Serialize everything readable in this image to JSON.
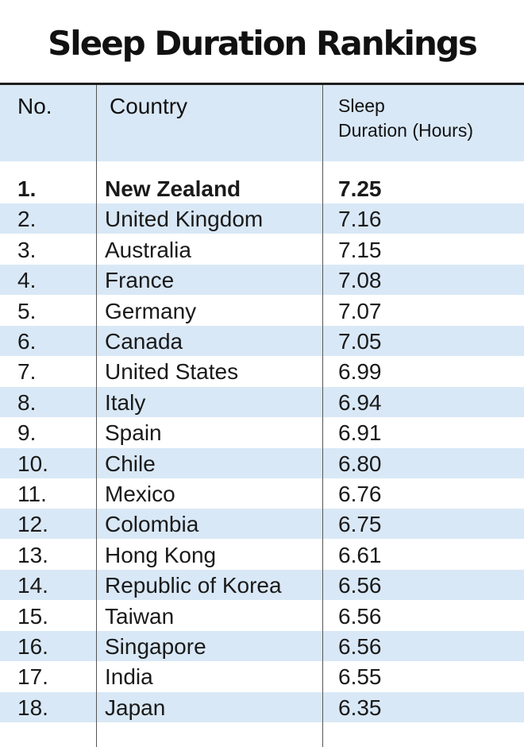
{
  "title": "Sleep Duration Rankings",
  "headers": {
    "no": "No.",
    "country": "Country",
    "sleep_line1": "Sleep",
    "sleep_line2": "Duration (Hours)"
  },
  "colors": {
    "band": "#d9e8f6",
    "rule": "#1e1e1e",
    "text": "#1a1a1a"
  },
  "chart_data": {
    "type": "table",
    "title": "Sleep Duration Rankings",
    "columns": [
      "No.",
      "Country",
      "Sleep Duration (Hours)"
    ],
    "rows": [
      {
        "rank": "1.",
        "country": "New Zealand",
        "value": "7.25"
      },
      {
        "rank": "2.",
        "country": "United Kingdom",
        "value": "7.16"
      },
      {
        "rank": "3.",
        "country": "Australia",
        "value": "7.15"
      },
      {
        "rank": "4.",
        "country": "France",
        "value": "7.08"
      },
      {
        "rank": "5.",
        "country": "Germany",
        "value": "7.07"
      },
      {
        "rank": "6.",
        "country": "Canada",
        "value": "7.05"
      },
      {
        "rank": "7.",
        "country": "United States",
        "value": "6.99"
      },
      {
        "rank": "8.",
        "country": "Italy",
        "value": "6.94"
      },
      {
        "rank": "9.",
        "country": "Spain",
        "value": "6.91"
      },
      {
        "rank": "10.",
        "country": "Chile",
        "value": "6.80"
      },
      {
        "rank": "11.",
        "country": "Mexico",
        "value": "6.76"
      },
      {
        "rank": "12.",
        "country": "Colombia",
        "value": "6.75"
      },
      {
        "rank": "13.",
        "country": "Hong Kong",
        "value": "6.61"
      },
      {
        "rank": "14.",
        "country": "Republic of Korea",
        "value": "6.56"
      },
      {
        "rank": "15.",
        "country": "Taiwan",
        "value": "6.56"
      },
      {
        "rank": "16.",
        "country": "Singapore",
        "value": "6.56"
      },
      {
        "rank": "17.",
        "country": "India",
        "value": "6.55"
      },
      {
        "rank": "18.",
        "country": "Japan",
        "value": "6.35"
      }
    ]
  }
}
